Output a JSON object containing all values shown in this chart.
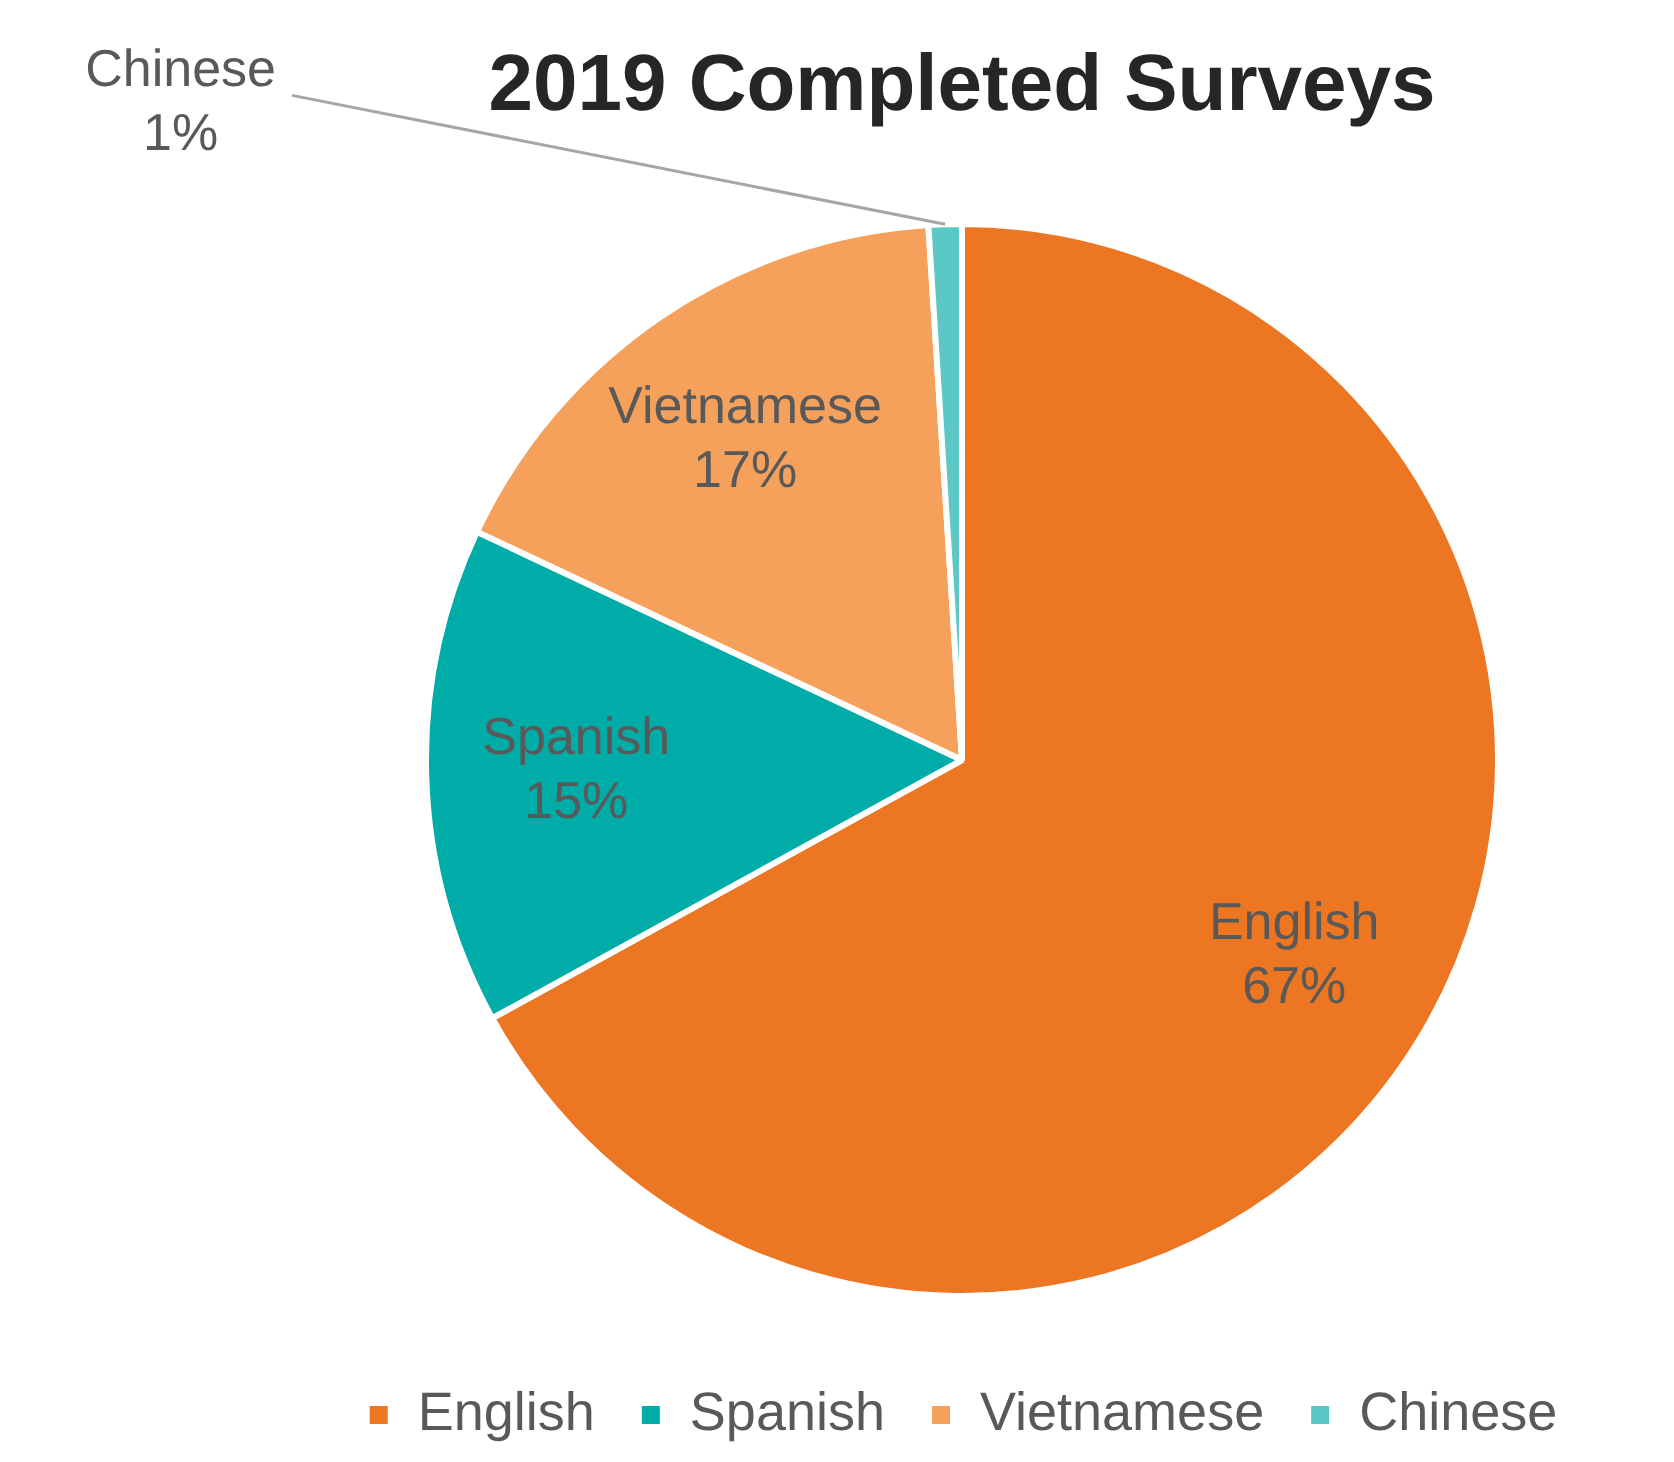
{
  "chart_data": {
    "type": "pie",
    "title": "2019 Completed Surveys",
    "categories": [
      "English",
      "Spanish",
      "Vietnamese",
      "Chinese"
    ],
    "values": [
      67,
      15,
      17,
      1
    ],
    "colors": [
      "#ed7622",
      "#00aca8",
      "#f5a15c",
      "#5cc8c6"
    ],
    "value_labels": [
      "67%",
      "15%",
      "17%",
      "1%"
    ],
    "legend": "bottom"
  }
}
